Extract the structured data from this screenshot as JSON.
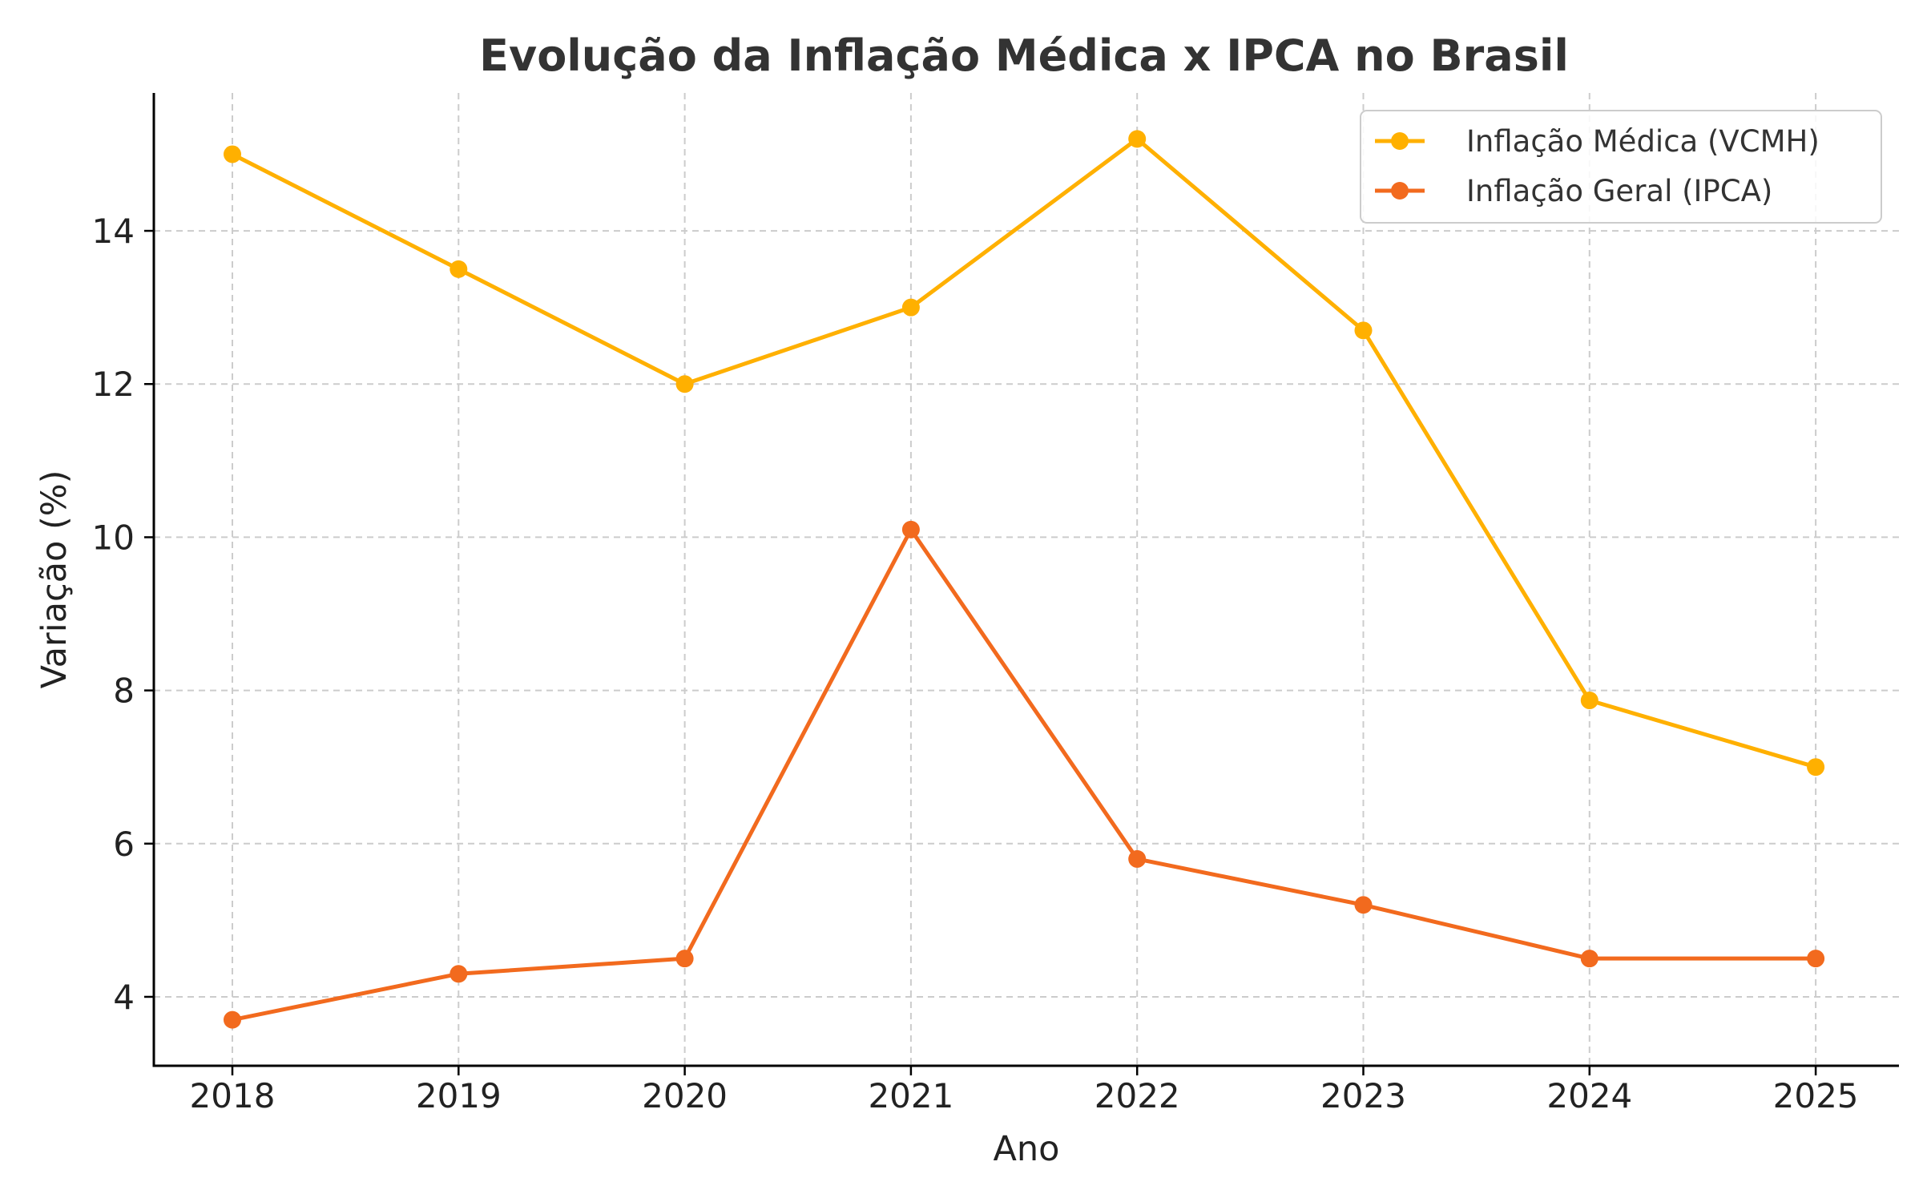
{
  "chart_data": {
    "type": "line",
    "title": "Evolução da Inflação Médica x IPCA no Brasil",
    "xlabel": "Ano",
    "ylabel": "Variação (%)",
    "categories": [
      "2018",
      "2019",
      "2020",
      "2021",
      "2022",
      "2023",
      "2024",
      "2025"
    ],
    "y_ticks": [
      "4",
      "6",
      "8",
      "10",
      "12",
      "14"
    ],
    "ylim": [
      3.1,
      15.8
    ],
    "grid": true,
    "legend_position": "top-right",
    "series": [
      {
        "name": "Inflação Médica (VCMH)",
        "color": "#FFB000",
        "values": [
          15.0,
          13.5,
          12.0,
          13.0,
          15.2,
          12.7,
          7.87,
          7.0
        ]
      },
      {
        "name": "Inflação Geral (IPCA)",
        "color": "#F26A1E",
        "values": [
          3.7,
          4.3,
          4.5,
          10.1,
          5.8,
          5.2,
          4.5,
          4.5
        ]
      }
    ]
  }
}
